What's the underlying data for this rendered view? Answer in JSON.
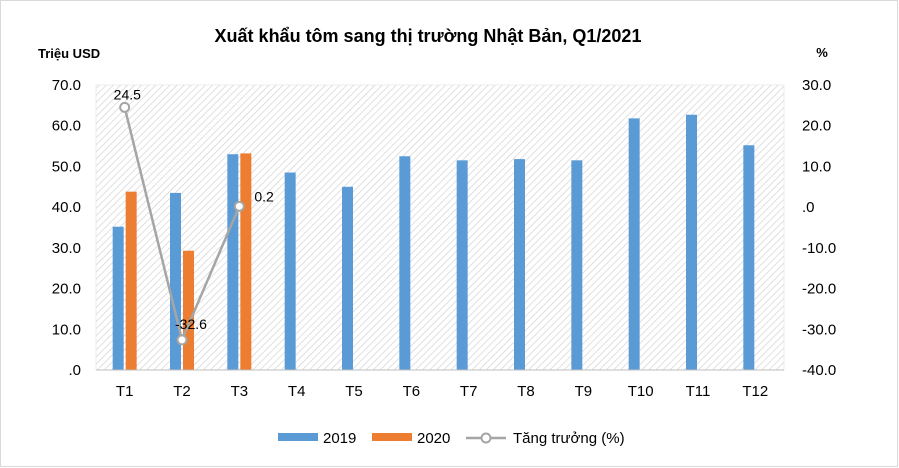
{
  "chart_data": {
    "type": "bar",
    "title": "Xuất khẩu tôm sang thị trường Nhật Bản, Q1/2021",
    "ylabel": "Triệu USD",
    "y2label": "%",
    "categories": [
      "T1",
      "T2",
      "T3",
      "T4",
      "T5",
      "T6",
      "T7",
      "T8",
      "T9",
      "T10",
      "T11",
      "T12"
    ],
    "ylim": [
      0,
      70
    ],
    "y2lim": [
      -40,
      30
    ],
    "y_ticks": [
      ".0",
      "10.0",
      "20.0",
      "30.0",
      "40.0",
      "50.0",
      "60.0",
      "70.0"
    ],
    "y2_ticks": [
      "-40.0",
      "-30.0",
      "-20.0",
      "-10.0",
      ".0",
      "10.0",
      "20.0",
      "30.0"
    ],
    "grid": false,
    "legend_position": "bottom",
    "series": [
      {
        "name": "2019",
        "type": "bar",
        "color": "#5b9bd5",
        "values": [
          35.2,
          43.5,
          53.0,
          48.5,
          45.0,
          52.5,
          51.5,
          51.8,
          51.5,
          61.8,
          62.7,
          55.2
        ]
      },
      {
        "name": "2020",
        "type": "bar",
        "color": "#ed7d31",
        "values": [
          43.8,
          29.3,
          53.2,
          null,
          null,
          null,
          null,
          null,
          null,
          null,
          null,
          null
        ]
      },
      {
        "name": "Tăng trưởng (%)",
        "type": "line",
        "axis": "right",
        "color": "#a5a5a5",
        "values": [
          24.5,
          -32.6,
          0.2,
          null,
          null,
          null,
          null,
          null,
          null,
          null,
          null,
          null
        ],
        "labels": [
          "24.5",
          "-32.6",
          "0.2"
        ]
      }
    ]
  }
}
